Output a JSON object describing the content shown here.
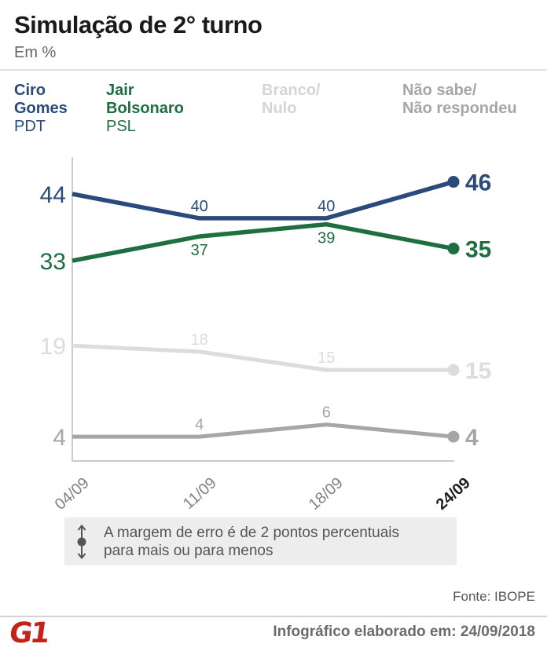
{
  "title": "Simulação de 2° turno",
  "subtitle": "Em %",
  "legend": {
    "entries": [
      {
        "lines": [
          "Ciro",
          "Gomes"
        ],
        "party": "PDT",
        "color": "#2a4a7b"
      },
      {
        "lines": [
          "Jair",
          "Bolsonaro"
        ],
        "party": "PSL",
        "color": "#1e6e40"
      },
      {
        "lines": [
          "Branco/",
          "Nulo"
        ],
        "party": "",
        "color": "#d5d5d5"
      },
      {
        "lines": [
          "Não sabe/",
          "Não respondeu"
        ],
        "party": "",
        "color": "#a6a6a6"
      }
    ]
  },
  "chart_data": {
    "type": "line",
    "categories": [
      "04/09",
      "11/09",
      "18/09",
      "24/09"
    ],
    "series": [
      {
        "name": "Ciro Gomes (PDT)",
        "values": [
          44,
          40,
          40,
          46
        ],
        "color": "#2a4a7b",
        "mid_label_side": "above"
      },
      {
        "name": "Jair Bolsonaro (PSL)",
        "values": [
          33,
          37,
          39,
          35
        ],
        "color": "#1e6e40",
        "mid_label_side": "below"
      },
      {
        "name": "Branco/Nulo",
        "values": [
          19,
          18,
          15,
          15
        ],
        "color": "#dcdcdc",
        "mid_label_side": "above"
      },
      {
        "name": "Não sabe/Não respondeu",
        "values": [
          4,
          4,
          6,
          4
        ],
        "color": "#a6a6a6",
        "mid_label_side": "above"
      }
    ],
    "title": "Simulação de 2° turno",
    "ylabel": "Em %",
    "ylim": [
      0,
      50
    ],
    "grid": false,
    "axis_color": "#cccccc",
    "legend_position": "top",
    "annotations": "first and last values labeled large; last point marked with dot"
  },
  "note": {
    "line1": "A margem de erro é de 2 pontos percentuais",
    "line2": "para mais ou para menos"
  },
  "source": "Fonte: IBOPE",
  "footer": {
    "logo": "G1",
    "logo_color": "#c4231b",
    "text": "Infográfico elaborado em: 24/09/2018"
  }
}
